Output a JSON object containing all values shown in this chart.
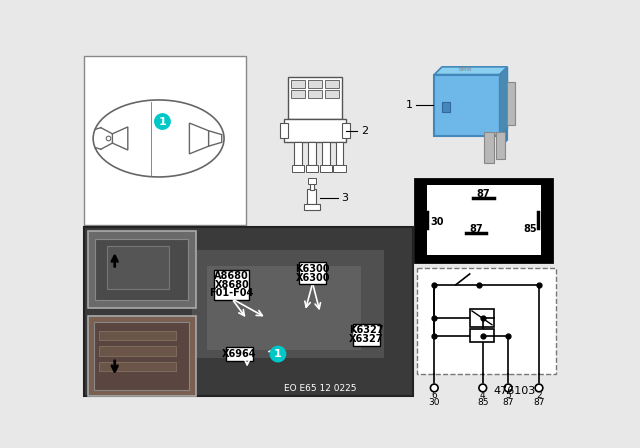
{
  "bg_color": "#e8e8e8",
  "white": "#ffffff",
  "black": "#000000",
  "teal_circle": "#00c8c8",
  "relay_blue": "#5aabdc",
  "footer_text": "EO E65 12 0225",
  "part_no": "476103",
  "labels_group1": [
    "A8680",
    "X8680",
    "F01-F04"
  ],
  "labels_group2": [
    "K6300",
    "X6300"
  ],
  "labels_group3": [
    "K6327",
    "X6327"
  ],
  "label_x6964": "X6964"
}
